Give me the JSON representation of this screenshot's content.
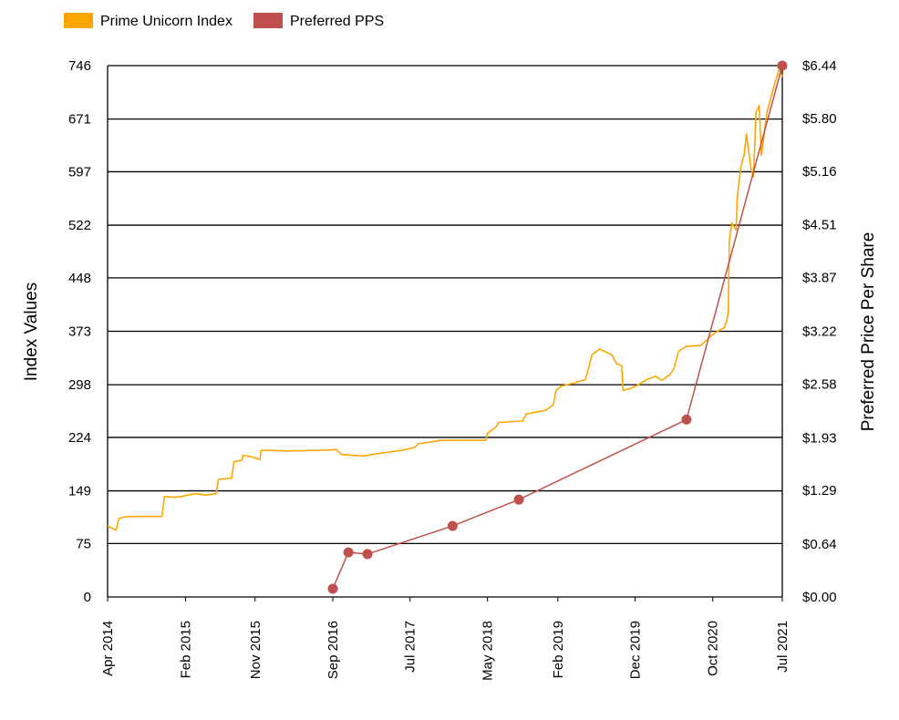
{
  "chart_data": {
    "type": "line",
    "legend_position": "top-left",
    "grid": true,
    "series_colors": {
      "index": "#FFA500",
      "pps": "#C0504D"
    },
    "legend": [
      {
        "label": "Prime Unicorn Index",
        "color": "#FFA500"
      },
      {
        "label": "Preferred PPS",
        "color": "#C0504D"
      }
    ],
    "y_left": {
      "label": "Index Values",
      "range": [
        0,
        746
      ],
      "ticks": [
        0,
        75,
        149,
        224,
        298,
        373,
        448,
        522,
        597,
        671,
        746
      ],
      "tick_labels": [
        "0",
        "75",
        "149",
        "224",
        "298",
        "373",
        "448",
        "522",
        "597",
        "671",
        "746"
      ]
    },
    "y_right": {
      "label": "Preferred Price Per Share",
      "range": [
        0,
        6.44
      ],
      "ticks": [
        0,
        0.64,
        1.29,
        1.93,
        2.58,
        3.22,
        3.87,
        4.51,
        5.16,
        5.8,
        6.44
      ],
      "tick_labels": [
        "$0.00",
        "$0.64",
        "$1.29",
        "$1.93",
        "$2.58",
        "$3.22",
        "$3.87",
        "$4.51",
        "$5.16",
        "$5.80",
        "$6.44"
      ]
    },
    "x": {
      "range": [
        "2014-04-01",
        "2021-07-01"
      ],
      "ticks": [
        "2014-04-01",
        "2015-02-01",
        "2015-11-01",
        "2016-09-01",
        "2017-07-01",
        "2018-05-01",
        "2019-02-01",
        "2019-12-01",
        "2020-10-01",
        "2021-07-01"
      ],
      "tick_labels": [
        "Apr 2014",
        "Feb 2015",
        "Nov 2015",
        "Sep 2016",
        "Jul 2017",
        "May 2018",
        "Feb 2019",
        "Dec 2019",
        "Oct 2020",
        "Jul 2021"
      ]
    },
    "series": [
      {
        "name": "Prime Unicorn Index",
        "axis": "left",
        "points": [
          [
            "2014-04-01",
            100
          ],
          [
            "2014-04-20",
            96
          ],
          [
            "2014-05-05",
            94
          ],
          [
            "2014-05-15",
            110
          ],
          [
            "2014-06-01",
            112
          ],
          [
            "2014-07-01",
            113
          ],
          [
            "2014-11-01",
            113
          ],
          [
            "2014-11-10",
            141
          ],
          [
            "2014-12-20",
            140
          ],
          [
            "2015-01-15",
            141
          ],
          [
            "2015-02-10",
            143
          ],
          [
            "2015-03-15",
            145
          ],
          [
            "2015-04-20",
            143
          ],
          [
            "2015-06-01",
            145
          ],
          [
            "2015-06-10",
            165
          ],
          [
            "2015-08-01",
            167
          ],
          [
            "2015-08-10",
            190
          ],
          [
            "2015-09-10",
            192
          ],
          [
            "2015-09-15",
            199
          ],
          [
            "2015-10-15",
            197
          ],
          [
            "2015-11-20",
            193
          ],
          [
            "2015-11-25",
            206
          ],
          [
            "2016-03-01",
            205
          ],
          [
            "2016-08-01",
            206
          ],
          [
            "2016-09-15",
            207
          ],
          [
            "2016-10-05",
            200
          ],
          [
            "2017-01-01",
            198
          ],
          [
            "2017-02-01",
            200
          ],
          [
            "2017-06-01",
            206
          ],
          [
            "2017-07-20",
            210
          ],
          [
            "2017-08-01",
            215
          ],
          [
            "2017-10-01",
            218
          ],
          [
            "2017-11-01",
            220
          ],
          [
            "2018-04-25",
            220
          ],
          [
            "2018-05-01",
            230
          ],
          [
            "2018-06-01",
            238
          ],
          [
            "2018-06-15",
            245
          ],
          [
            "2018-09-15",
            247
          ],
          [
            "2018-10-01",
            257
          ],
          [
            "2018-12-15",
            262
          ],
          [
            "2019-01-15",
            270
          ],
          [
            "2019-01-25",
            290
          ],
          [
            "2019-02-15",
            296
          ],
          [
            "2019-04-01",
            300
          ],
          [
            "2019-05-20",
            305
          ],
          [
            "2019-06-01",
            320
          ],
          [
            "2019-06-15",
            340
          ],
          [
            "2019-07-15",
            348
          ],
          [
            "2019-09-01",
            340
          ],
          [
            "2019-09-20",
            327
          ],
          [
            "2019-10-10",
            325
          ],
          [
            "2019-10-15",
            290
          ],
          [
            "2019-11-15",
            293
          ],
          [
            "2019-12-15",
            298
          ],
          [
            "2020-01-15",
            305
          ],
          [
            "2020-02-20",
            310
          ],
          [
            "2020-03-15",
            304
          ],
          [
            "2020-04-15",
            312
          ],
          [
            "2020-05-01",
            320
          ],
          [
            "2020-05-20",
            345
          ],
          [
            "2020-06-20",
            352
          ],
          [
            "2020-08-15",
            353
          ],
          [
            "2020-09-20",
            365
          ],
          [
            "2020-10-15",
            372
          ],
          [
            "2020-11-15",
            378
          ],
          [
            "2020-11-25",
            388
          ],
          [
            "2020-12-01",
            400
          ],
          [
            "2020-12-05",
            500
          ],
          [
            "2020-12-15",
            525
          ],
          [
            "2021-01-01",
            515
          ],
          [
            "2021-01-05",
            560
          ],
          [
            "2021-01-20",
            605
          ],
          [
            "2021-02-01",
            620
          ],
          [
            "2021-02-10",
            650
          ],
          [
            "2021-03-01",
            600
          ],
          [
            "2021-03-10",
            590
          ],
          [
            "2021-03-20",
            680
          ],
          [
            "2021-04-01",
            690
          ],
          [
            "2021-04-10",
            620
          ],
          [
            "2021-05-01",
            680
          ],
          [
            "2021-06-01",
            720
          ],
          [
            "2021-06-20",
            742
          ],
          [
            "2021-07-01",
            730
          ]
        ]
      },
      {
        "name": "Preferred PPS",
        "axis": "right",
        "points": [
          [
            "2016-09-01",
            0.1
          ],
          [
            "2016-11-01",
            0.54
          ],
          [
            "2017-01-15",
            0.52
          ],
          [
            "2017-12-15",
            0.86
          ],
          [
            "2018-09-01",
            1.18
          ],
          [
            "2020-06-20",
            2.15
          ],
          [
            "2021-07-01",
            6.44
          ]
        ]
      }
    ]
  }
}
